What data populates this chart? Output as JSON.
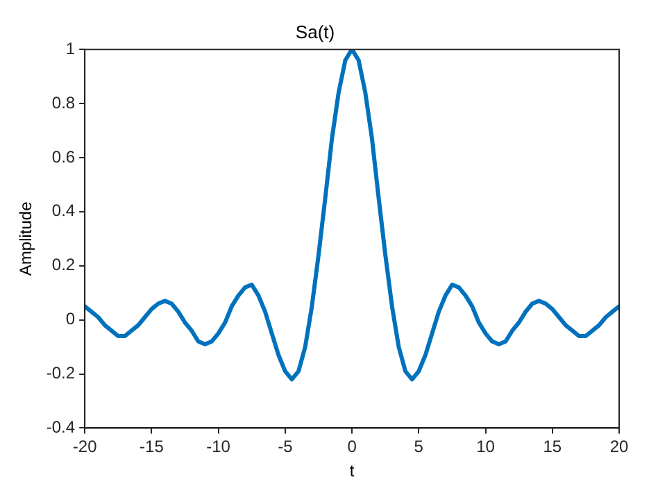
{
  "chart_data": {
    "type": "line",
    "title": "Sa(t)",
    "xlabel": "t",
    "ylabel": "Amplitude",
    "x": [
      -20,
      -19.5,
      -19,
      -18.5,
      -18,
      -17.5,
      -17,
      -16.5,
      -16,
      -15.5,
      -15,
      -14.5,
      -14,
      -13.5,
      -13,
      -12.5,
      -12,
      -11.5,
      -11,
      -10.5,
      -10,
      -9.5,
      -9,
      -8.5,
      -8,
      -7.5,
      -7,
      -6.5,
      -6,
      -5.5,
      -5,
      -4.5,
      -4,
      -3.5,
      -3,
      -2.5,
      -2,
      -1.5,
      -1,
      -0.5,
      0,
      0.5,
      1,
      1.5,
      2,
      2.5,
      3,
      3.5,
      4,
      4.5,
      5,
      5.5,
      6,
      6.5,
      7,
      7.5,
      8,
      8.5,
      9,
      9.5,
      10,
      10.5,
      11,
      11.5,
      12,
      12.5,
      13,
      13.5,
      14,
      14.5,
      15,
      15.5,
      16,
      16.5,
      17,
      17.5,
      18,
      18.5,
      19,
      19.5,
      20
    ],
    "series": [
      {
        "color": "#0072bd",
        "values": [
          0.05,
          0.03,
          0.01,
          -0.02,
          -0.04,
          -0.06,
          -0.06,
          -0.04,
          -0.02,
          0.01,
          0.04,
          0.06,
          0.07,
          0.06,
          0.03,
          -0.01,
          -0.04,
          -0.08,
          -0.09,
          -0.08,
          -0.05,
          -0.01,
          0.05,
          0.09,
          0.12,
          0.13,
          0.09,
          0.03,
          -0.05,
          -0.13,
          -0.19,
          -0.22,
          -0.19,
          -0.1,
          0.05,
          0.24,
          0.45,
          0.67,
          0.84,
          0.96,
          1,
          0.96,
          0.84,
          0.67,
          0.45,
          0.24,
          0.05,
          -0.1,
          -0.19,
          -0.22,
          -0.19,
          -0.13,
          -0.05,
          0.03,
          0.09,
          0.13,
          0.12,
          0.09,
          0.05,
          -0.01,
          -0.05,
          -0.08,
          -0.09,
          -0.08,
          -0.04,
          -0.01,
          0.03,
          0.06,
          0.07,
          0.06,
          0.04,
          0.01,
          -0.02,
          -0.04,
          -0.06,
          -0.06,
          -0.04,
          -0.02,
          0.01,
          0.03,
          0.05
        ]
      }
    ],
    "xlim": [
      -20,
      20
    ],
    "xticks": [
      -20,
      -15,
      -10,
      -5,
      0,
      5,
      10,
      15,
      20
    ],
    "ylim": [
      -0.4,
      1
    ],
    "yticks": [
      -0.4,
      -0.2,
      0,
      0.2,
      0.4,
      0.6,
      0.8,
      1
    ],
    "grid": false,
    "legend": false,
    "marker": "none",
    "line_style": "solid"
  }
}
